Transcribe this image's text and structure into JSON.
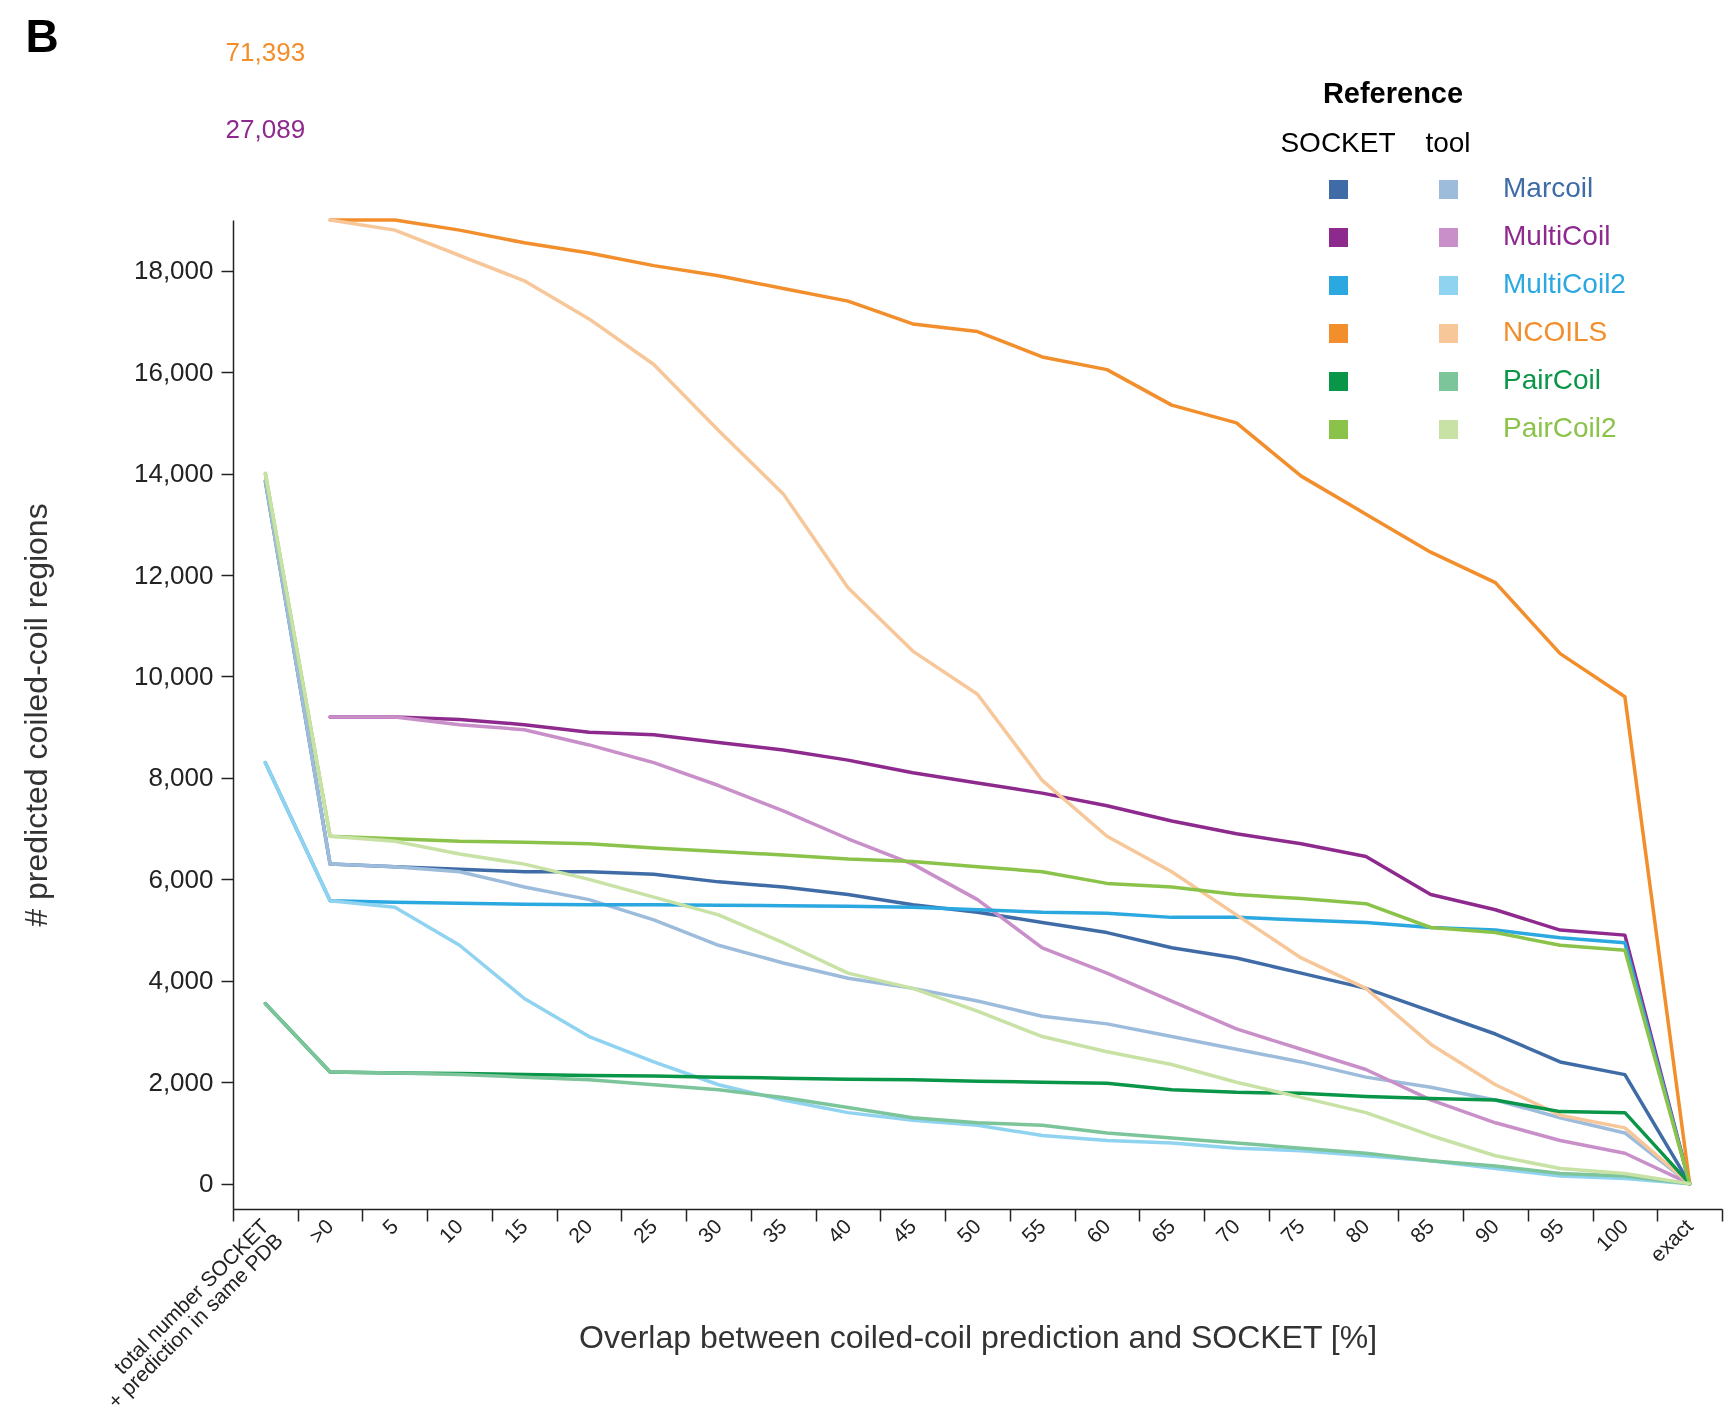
{
  "chart_data": {
    "type": "line",
    "xlabel": "Overlap between coiled-coil prediction and SOCKET [%]",
    "ylabel": "# predicted coiled-coil regions",
    "legend_title": "Reference",
    "legend": "top right",
    "annotations": [
      "B",
      "SOCKET",
      "tool"
    ],
    "categories": [
      "total number SOCKET\n+ prediction in same PDB",
      ">0",
      "5",
      "10",
      "15",
      "20",
      "25",
      "30",
      "35",
      "40",
      "45",
      "50",
      "55",
      "60",
      "65",
      "70",
      "75",
      "80",
      "85",
      "90",
      "95",
      "100",
      "exact"
    ],
    "ylim": [
      -500,
      19000
    ],
    "yticks": [
      0,
      {
        "value": 2000,
        "label": "2,000"
      },
      {
        "value": 4000,
        "label": "4,000"
      },
      {
        "value": 6000,
        "label": "6,000"
      },
      {
        "value": 8000,
        "label": "8,000"
      },
      {
        "value": 10000,
        "label": "10,000"
      },
      {
        "value": 12000,
        "label": "12,000"
      },
      {
        "value": 14000,
        "label": "14,000"
      },
      {
        "value": 16000,
        "label": "16,000"
      },
      {
        "value": 18000,
        "label": "18,000"
      }
    ],
    "series": [
      {
        "name": "Marcoil",
        "color": "#3f6ca6",
        "values": [
          13850,
          6300,
          6250,
          6200,
          6150,
          6150,
          6100,
          5950,
          5850,
          5700,
          5500,
          5350,
          5150,
          4950,
          4650,
          4450,
          4150,
          3850,
          3400,
          2950,
          2400,
          2150,
          0
        ]
      },
      {
        "color": "#9dbcdc",
        "values": [
          13850,
          6300,
          6250,
          6150,
          5850,
          5600,
          5200,
          4700,
          4350,
          4050,
          3850,
          3600,
          3300,
          3150,
          2900,
          2650,
          2400,
          2100,
          1900,
          1650,
          1300,
          1000,
          0
        ]
      },
      {
        "name": "MultiCoil",
        "color": "#8e2a8e",
        "values": [
          null,
          9200,
          9200,
          9150,
          9050,
          8900,
          8850,
          8700,
          8550,
          8350,
          8100,
          7900,
          7700,
          7450,
          7150,
          6900,
          6700,
          6450,
          5700,
          5400,
          5000,
          4900,
          0
        ],
        "value_labels": [
          "27,089",
          null,
          null,
          null,
          null,
          null,
          null,
          null,
          null,
          null,
          null,
          null,
          null,
          null,
          null,
          null,
          null,
          null,
          null,
          null,
          null,
          null,
          null
        ]
      },
      {
        "color": "#c98fc9",
        "values": [
          null,
          9200,
          9200,
          9050,
          8950,
          8650,
          8300,
          7850,
          7350,
          6800,
          6300,
          5600,
          4650,
          4150,
          3600,
          3050,
          2650,
          2250,
          1650,
          1200,
          850,
          600,
          0
        ]
      },
      {
        "name": "MultiCoil2",
        "color": "#2ba8e0",
        "values": [
          8300,
          5580,
          5550,
          5530,
          5510,
          5500,
          5500,
          5490,
          5480,
          5470,
          5450,
          5400,
          5350,
          5330,
          5250,
          5250,
          5200,
          5150,
          5050,
          5000,
          4850,
          4750,
          0
        ]
      },
      {
        "color": "#8fd3f0",
        "values": [
          8300,
          5580,
          5450,
          4700,
          3650,
          2900,
          2400,
          1950,
          1650,
          1400,
          1250,
          1150,
          950,
          850,
          800,
          700,
          650,
          550,
          450,
          300,
          150,
          100,
          0
        ]
      },
      {
        "name": "NCOILS",
        "color": "#f28e2b",
        "values": [
          null,
          19000,
          19000,
          18800,
          18550,
          18350,
          18100,
          17900,
          17650,
          17400,
          16950,
          16800,
          16300,
          16050,
          15350,
          15000,
          13950,
          13200,
          12450,
          11850,
          10450,
          9600,
          0
        ],
        "value_labels": [
          "71,393",
          null,
          null,
          null,
          null,
          null,
          null,
          null,
          null,
          null,
          null,
          null,
          null,
          null,
          null,
          null,
          null,
          null,
          null,
          null,
          null,
          null,
          null
        ]
      },
      {
        "color": "#f7c79a",
        "values": [
          null,
          19000,
          18800,
          18300,
          17800,
          17050,
          16150,
          14850,
          13600,
          11750,
          10500,
          9650,
          7950,
          6850,
          6150,
          5300,
          4450,
          3850,
          2750,
          1950,
          1350,
          1100,
          0
        ]
      },
      {
        "name": "PairCoil",
        "color": "#0a9648",
        "values": [
          3550,
          2200,
          2180,
          2170,
          2150,
          2130,
          2120,
          2100,
          2080,
          2060,
          2050,
          2020,
          2000,
          1980,
          1850,
          1800,
          1780,
          1720,
          1680,
          1650,
          1420,
          1400,
          0
        ]
      },
      {
        "color": "#7cc49a",
        "values": [
          3550,
          2200,
          2180,
          2150,
          2100,
          2050,
          1950,
          1850,
          1700,
          1500,
          1300,
          1200,
          1150,
          1000,
          900,
          800,
          700,
          600,
          450,
          350,
          200,
          150,
          0
        ]
      },
      {
        "name": "PairCoil2",
        "color": "#8bc34a",
        "values": [
          14000,
          6850,
          6800,
          6750,
          6730,
          6700,
          6620,
          6550,
          6480,
          6400,
          6350,
          6250,
          6150,
          5920,
          5850,
          5700,
          5620,
          5520,
          5050,
          4950,
          4700,
          4600,
          0
        ]
      },
      {
        "color": "#c7e2a4",
        "values": [
          14000,
          6850,
          6750,
          6500,
          6300,
          6000,
          5650,
          5300,
          4750,
          4150,
          3850,
          3400,
          2900,
          2600,
          2350,
          2000,
          1700,
          1400,
          950,
          550,
          300,
          200,
          0
        ]
      }
    ]
  }
}
